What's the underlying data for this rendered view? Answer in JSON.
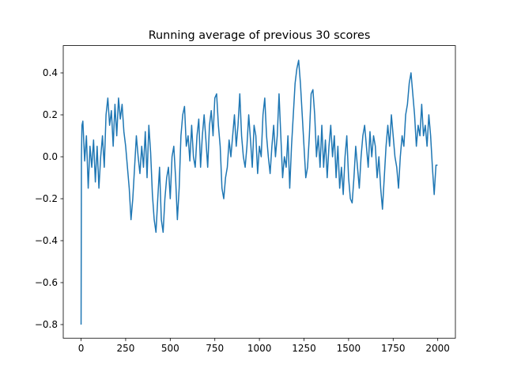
{
  "chart_data": {
    "type": "line",
    "title": "Running average of previous 30 scores",
    "color": "#1f77b4",
    "xlim": [
      -99.95,
      2098.95
    ],
    "ylim": [
      -0.865,
      0.53
    ],
    "xticks": [
      0,
      250,
      500,
      750,
      1000,
      1250,
      1500,
      1750,
      2000
    ],
    "yticks": [
      {
        "value": -0.8,
        "label": "−0.8"
      },
      {
        "value": -0.6,
        "label": "−0.6"
      },
      {
        "value": -0.4,
        "label": "−0.4"
      },
      {
        "value": -0.2,
        "label": "−0.2"
      },
      {
        "value": 0,
        "label": "0.0"
      },
      0.2,
      0.4
    ],
    "x": [
      0,
      2,
      5,
      10,
      20,
      30,
      40,
      50,
      60,
      70,
      80,
      90,
      100,
      110,
      120,
      130,
      140,
      150,
      160,
      170,
      180,
      190,
      200,
      210,
      220,
      230,
      240,
      250,
      260,
      270,
      280,
      290,
      300,
      310,
      320,
      330,
      340,
      350,
      360,
      370,
      380,
      390,
      400,
      410,
      420,
      430,
      440,
      450,
      460,
      470,
      480,
      490,
      500,
      510,
      520,
      530,
      540,
      550,
      560,
      570,
      580,
      590,
      600,
      610,
      620,
      630,
      640,
      650,
      660,
      670,
      680,
      690,
      700,
      710,
      720,
      730,
      740,
      750,
      760,
      770,
      780,
      790,
      800,
      810,
      820,
      830,
      840,
      850,
      860,
      870,
      880,
      890,
      900,
      910,
      920,
      930,
      940,
      950,
      960,
      970,
      980,
      990,
      1000,
      1010,
      1020,
      1030,
      1040,
      1050,
      1060,
      1070,
      1080,
      1090,
      1100,
      1110,
      1120,
      1130,
      1140,
      1150,
      1160,
      1170,
      1180,
      1190,
      1200,
      1210,
      1220,
      1230,
      1240,
      1250,
      1260,
      1270,
      1280,
      1290,
      1300,
      1310,
      1320,
      1330,
      1340,
      1350,
      1360,
      1370,
      1380,
      1390,
      1400,
      1410,
      1420,
      1430,
      1440,
      1450,
      1460,
      1470,
      1480,
      1490,
      1500,
      1510,
      1520,
      1530,
      1540,
      1550,
      1560,
      1570,
      1580,
      1590,
      1600,
      1610,
      1620,
      1630,
      1640,
      1650,
      1660,
      1670,
      1680,
      1690,
      1700,
      1710,
      1720,
      1730,
      1740,
      1750,
      1760,
      1770,
      1780,
      1790,
      1800,
      1810,
      1820,
      1830,
      1840,
      1850,
      1860,
      1870,
      1880,
      1890,
      1900,
      1910,
      1920,
      1930,
      1940,
      1950,
      1960,
      1970,
      1980,
      1990,
      1999
    ],
    "values": [
      -0.8,
      0.0,
      0.15,
      0.17,
      -0.02,
      0.1,
      -0.15,
      0.05,
      -0.05,
      0.08,
      -0.12,
      0.05,
      -0.15,
      0.0,
      0.1,
      -0.05,
      0.2,
      0.28,
      0.15,
      0.22,
      0.05,
      0.25,
      0.1,
      0.28,
      0.18,
      0.25,
      0.12,
      0.05,
      -0.05,
      -0.15,
      -0.3,
      -0.2,
      -0.05,
      0.1,
      0.0,
      -0.08,
      0.05,
      -0.05,
      0.12,
      -0.1,
      0.15,
      0.02,
      -0.18,
      -0.3,
      -0.36,
      -0.2,
      -0.05,
      -0.3,
      -0.36,
      -0.2,
      -0.1,
      -0.05,
      -0.2,
      0.0,
      0.05,
      -0.1,
      -0.3,
      -0.15,
      0.1,
      0.2,
      0.24,
      0.05,
      0.1,
      -0.02,
      0.15,
      0.0,
      -0.05,
      0.1,
      0.18,
      -0.05,
      0.1,
      0.2,
      0.08,
      -0.05,
      0.15,
      0.22,
      0.1,
      0.28,
      0.3,
      0.15,
      0.05,
      -0.15,
      -0.2,
      -0.1,
      -0.05,
      0.08,
      0.0,
      0.1,
      0.2,
      0.05,
      0.15,
      0.3,
      0.1,
      0.0,
      -0.05,
      0.05,
      0.2,
      0.08,
      -0.05,
      0.15,
      0.1,
      -0.08,
      0.05,
      0.0,
      0.2,
      0.28,
      0.1,
      0.0,
      -0.08,
      0.05,
      0.15,
      0.0,
      0.1,
      0.3,
      0.1,
      -0.1,
      0.0,
      -0.05,
      0.1,
      -0.15,
      0.05,
      0.2,
      0.35,
      0.42,
      0.46,
      0.35,
      0.2,
      0.05,
      -0.1,
      -0.05,
      0.1,
      0.3,
      0.32,
      0.2,
      0.0,
      0.1,
      -0.05,
      0.15,
      -0.05,
      0.08,
      -0.1,
      0.05,
      0.15,
      0.0,
      0.1,
      -0.1,
      0.05,
      -0.15,
      -0.05,
      -0.18,
      0.0,
      0.1,
      -0.1,
      -0.2,
      -0.22,
      -0.1,
      0.05,
      -0.05,
      -0.15,
      0.0,
      0.1,
      0.15,
      0.05,
      -0.05,
      0.12,
      0.0,
      0.1,
      0.05,
      -0.1,
      0.0,
      -0.15,
      -0.25,
      -0.1,
      0.05,
      0.15,
      0.05,
      0.2,
      0.1,
      0.0,
      -0.05,
      -0.15,
      0.0,
      0.1,
      0.05,
      0.2,
      0.25,
      0.35,
      0.4,
      0.3,
      0.2,
      0.05,
      0.15,
      0.1,
      0.25,
      0.1,
      0.15,
      0.05,
      0.2,
      0.1,
      -0.05,
      -0.18,
      -0.04,
      -0.04
    ]
  }
}
